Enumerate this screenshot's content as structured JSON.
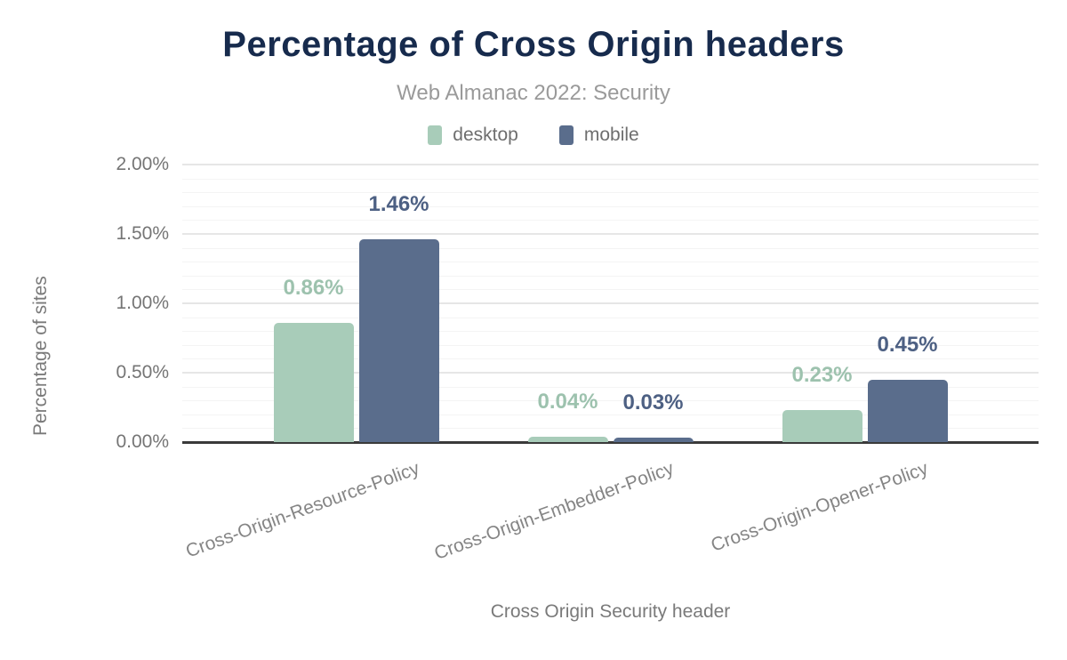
{
  "chart_data": {
    "type": "bar",
    "title": "Percentage of Cross Origin headers",
    "subtitle": "Web Almanac 2022: Security",
    "xlabel": "Cross Origin Security header",
    "ylabel": "Percentage of sites",
    "categories": [
      "Cross-Origin-Resource-Policy",
      "Cross-Origin-Embedder-Policy",
      "Cross-Origin-Opener-Policy"
    ],
    "series": [
      {
        "name": "desktop",
        "color": "#a8ccb9",
        "label_color": "#9dc2ae",
        "values": [
          0.86,
          0.04,
          0.23
        ]
      },
      {
        "name": "mobile",
        "color": "#5a6d8c",
        "label_color": "#4d6083",
        "values": [
          1.46,
          0.03,
          0.45
        ]
      }
    ],
    "value_labels": {
      "desktop": [
        "0.86%",
        "0.04%",
        "0.23%"
      ],
      "mobile": [
        "1.46%",
        "0.03%",
        "0.45%"
      ]
    },
    "ylim": [
      0,
      2.0
    ],
    "y_major_step": 0.5,
    "y_minor_step": 0.1,
    "y_tick_labels": [
      "0.00%",
      "0.50%",
      "1.00%",
      "1.50%",
      "2.00%"
    ],
    "tick_format": "percent-2dp",
    "grid": "horizontal",
    "legend_position": "top",
    "colors": {
      "title": "#172b4d",
      "subtitle": "#9a9a9a",
      "axis_text": "#757575",
      "category_text": "#858585",
      "baseline": "#3a3a3a",
      "grid_major": "#e6e6e6",
      "grid_minor": "#f4f4f4"
    }
  }
}
